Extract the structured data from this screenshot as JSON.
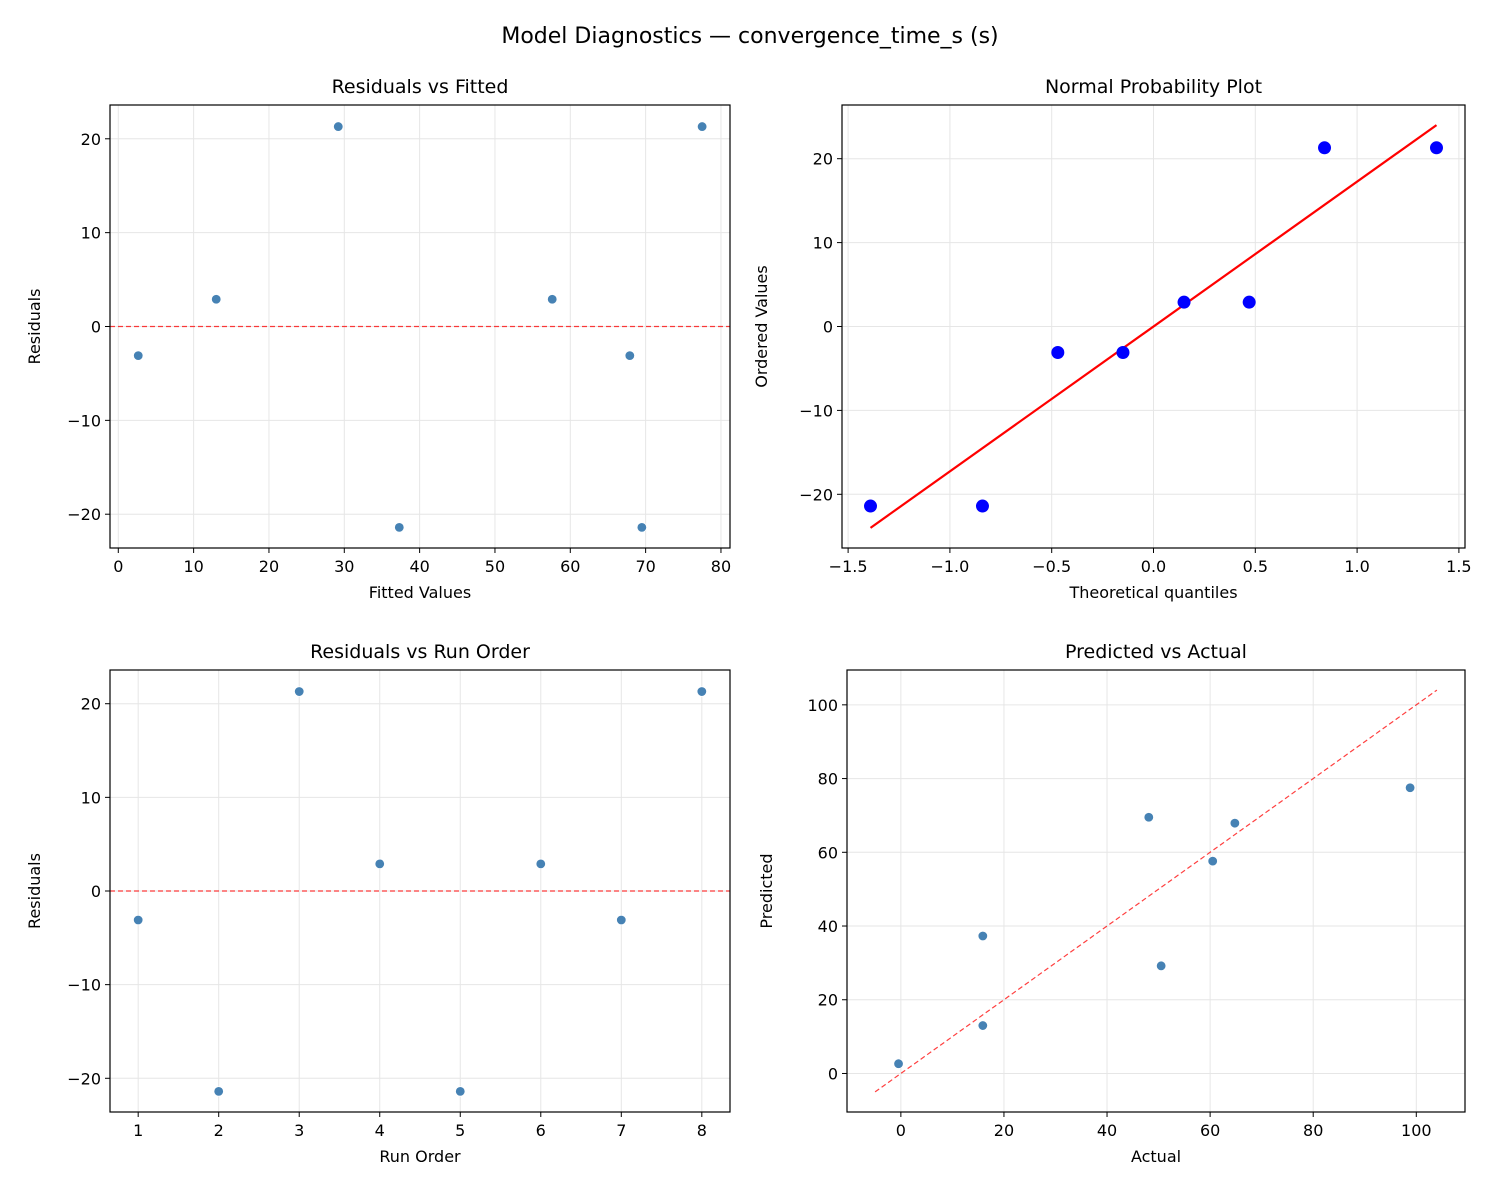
{
  "chart_data": {
    "title": "Model Diagnostics — convergence_time_s (s)",
    "colors": {
      "points": "#4682b4",
      "qq_points": "#0000ff",
      "qq_line": "#ff0000",
      "reference_line": "#ff0000",
      "grid": "#e6e6e6"
    },
    "panels": [
      {
        "id": "residuals-vs-fitted",
        "type": "scatter",
        "title": "Residuals vs Fitted",
        "xlabel": "Fitted Values",
        "ylabel": "Residuals",
        "xlim": [
          -1.1,
          81.2
        ],
        "ylim": [
          -23.6,
          23.6
        ],
        "xticks": [
          0,
          10,
          20,
          30,
          40,
          50,
          60,
          70,
          80
        ],
        "yticks": [
          -20,
          -10,
          0,
          10,
          20
        ],
        "grid": true,
        "hline": 0,
        "x": [
          2.65,
          37.3,
          29.2,
          13.0,
          69.5,
          57.6,
          67.9,
          77.5
        ],
        "y": [
          -3.1,
          -21.4,
          21.3,
          2.9,
          -21.4,
          2.9,
          -3.1,
          21.3
        ]
      },
      {
        "id": "normal-probability-plot",
        "type": "scatter",
        "title": "Normal Probability Plot",
        "xlabel": "Theoretical quantiles",
        "ylabel": "Ordered Values",
        "xlim": [
          -1.53,
          1.53
        ],
        "ylim": [
          -26.4,
          26.4
        ],
        "xticks": [
          -1.5,
          -1.0,
          -0.5,
          0.0,
          0.5,
          1.0,
          1.5
        ],
        "xtick_labels": [
          "−1.5",
          "−1.0",
          "−0.5",
          "0.0",
          "0.5",
          "1.0",
          "1.5"
        ],
        "yticks": [
          -20,
          -10,
          0,
          10,
          20
        ],
        "grid": true,
        "x": [
          -1.39,
          -0.84,
          -0.47,
          -0.15,
          0.15,
          0.47,
          0.84,
          1.39
        ],
        "y": [
          -21.4,
          -21.4,
          -3.1,
          -3.1,
          2.9,
          2.9,
          21.3,
          21.3
        ],
        "fit_line": {
          "x": [
            -1.39,
            1.39
          ],
          "y": [
            -24.0,
            24.0
          ]
        }
      },
      {
        "id": "residuals-vs-run-order",
        "type": "scatter",
        "title": "Residuals vs Run Order",
        "xlabel": "Run Order",
        "ylabel": "Residuals",
        "xlim": [
          0.65,
          8.35
        ],
        "ylim": [
          -23.6,
          23.6
        ],
        "xticks": [
          1,
          2,
          3,
          4,
          5,
          6,
          7,
          8
        ],
        "yticks": [
          -20,
          -10,
          0,
          10,
          20
        ],
        "grid": true,
        "hline": 0,
        "x": [
          1,
          2,
          3,
          4,
          5,
          6,
          7,
          8
        ],
        "y": [
          -3.1,
          -21.4,
          21.3,
          2.9,
          -21.4,
          2.9,
          -3.1,
          21.3
        ]
      },
      {
        "id": "predicted-vs-actual",
        "type": "scatter",
        "title": "Predicted vs Actual",
        "xlabel": "Actual",
        "ylabel": "Predicted",
        "xlim": [
          -10.45,
          109.45
        ],
        "ylim": [
          -10.45,
          109.45
        ],
        "xticks": [
          0,
          20,
          40,
          60,
          80,
          100
        ],
        "yticks": [
          0,
          20,
          40,
          60,
          80,
          100
        ],
        "grid": true,
        "x": [
          -0.45,
          15.9,
          50.5,
          15.9,
          48.1,
          60.5,
          64.8,
          98.8
        ],
        "y": [
          2.65,
          37.3,
          29.2,
          13.0,
          69.5,
          57.6,
          67.9,
          77.5
        ],
        "identity_line": {
          "x": [
            -5,
            104
          ],
          "y": [
            -5,
            104
          ]
        }
      }
    ]
  }
}
